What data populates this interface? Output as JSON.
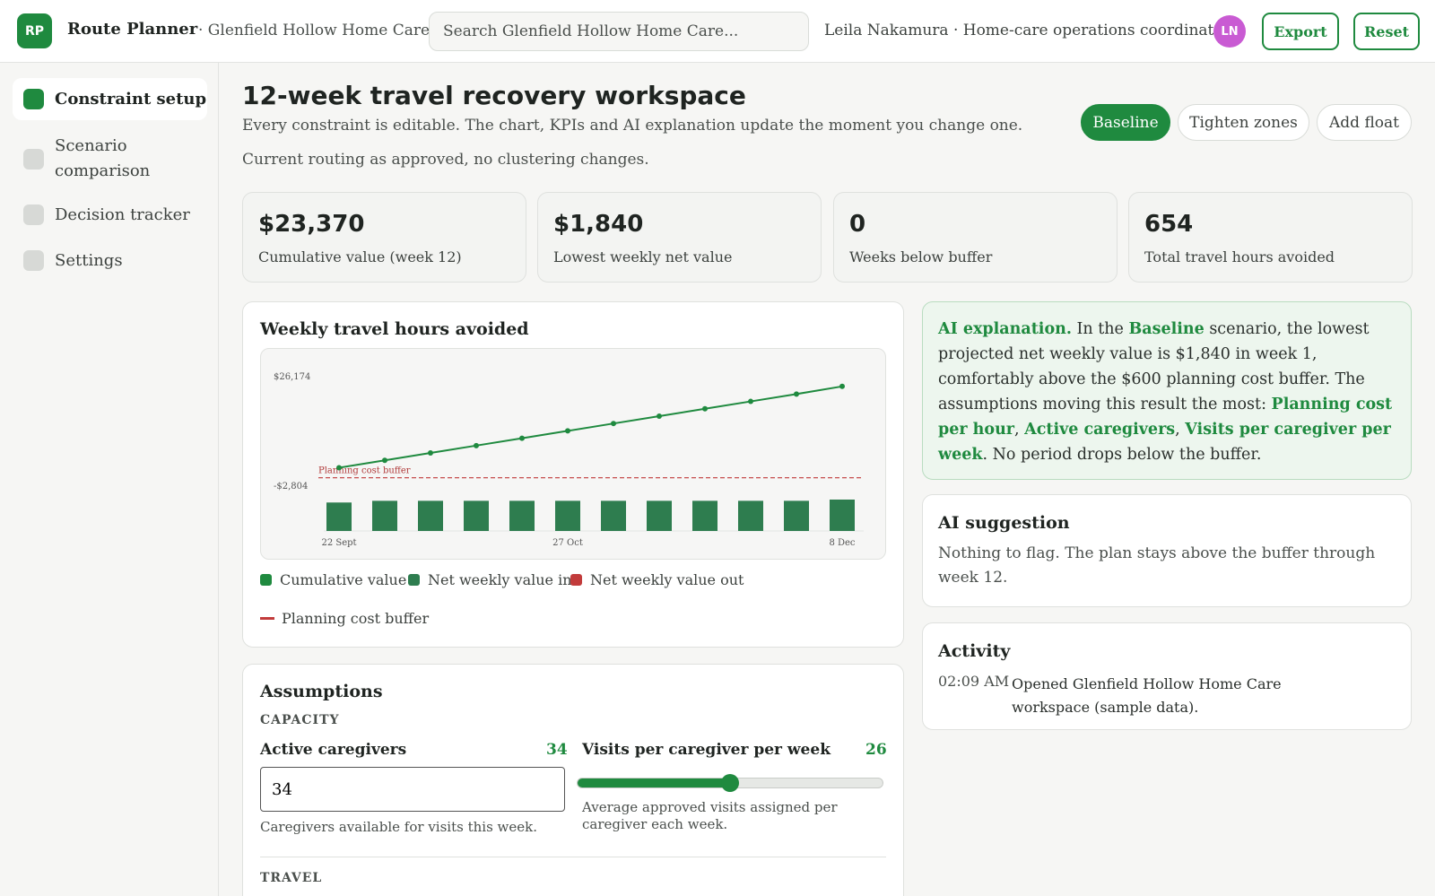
{
  "app": {
    "logo": "RP",
    "name": "Route Planner",
    "org": "· Glenfield Hollow Home Care"
  },
  "search": {
    "placeholder": "Search Glenfield Hollow Home Care..."
  },
  "user": {
    "label": "Leila Nakamura · Home-care operations coordinator",
    "initials": "LN"
  },
  "header_actions": {
    "export": "Export",
    "reset": "Reset"
  },
  "sidebar": {
    "items": [
      {
        "label": "Constraint setup",
        "active": true
      },
      {
        "label": "Scenario comparison",
        "active": false
      },
      {
        "label": "Decision tracker",
        "active": false
      },
      {
        "label": "Settings",
        "active": false
      }
    ]
  },
  "page": {
    "title": "12-week travel recovery workspace",
    "subtitle": "Every constraint is editable. The chart, KPIs and AI explanation update the moment you change one.",
    "scenario_note": "Current routing as approved, no clustering changes."
  },
  "scenarios": [
    {
      "label": "Baseline",
      "active": true
    },
    {
      "label": "Tighten zones",
      "active": false
    },
    {
      "label": "Add float",
      "active": false
    }
  ],
  "kpis": [
    {
      "value": "$23,370",
      "label": "Cumulative value (week 12)"
    },
    {
      "value": "$1,840",
      "label": "Lowest weekly net value"
    },
    {
      "value": "0",
      "label": "Weeks below buffer"
    },
    {
      "value": "654",
      "label": "Total travel hours avoided"
    }
  ],
  "chart_card": {
    "title": "Weekly travel hours avoided",
    "legend": [
      {
        "label": "Cumulative value",
        "color": "#1f8a3f"
      },
      {
        "label": "Net weekly value in",
        "color": "#2e7d4f"
      },
      {
        "label": "Net weekly value out",
        "color": "#c23b3b"
      },
      {
        "label": "Planning cost buffer",
        "color": "#c23b3b"
      }
    ]
  },
  "chart_data": {
    "type": "bar",
    "title": "Weekly travel hours avoided",
    "y_ticks": [
      "$26,174",
      "-$2,804"
    ],
    "ylim": [
      -2804,
      26174
    ],
    "x_tick_labels": [
      "22 Sept",
      "27 Oct",
      "8 Dec"
    ],
    "weeks": [
      1,
      2,
      3,
      4,
      5,
      6,
      7,
      8,
      9,
      10,
      11,
      12
    ],
    "buffer": {
      "label": "Planning cost buffer",
      "value": 600
    },
    "series": [
      {
        "name": "Cumulative value",
        "type": "line",
        "values": [
          1840,
          3790,
          5740,
          7690,
          9640,
          11590,
          13540,
          15490,
          17440,
          19390,
          21340,
          23370
        ]
      },
      {
        "name": "Net weekly value in",
        "type": "bar",
        "values": [
          1840,
          1950,
          1950,
          1950,
          1950,
          1950,
          1950,
          1950,
          1950,
          1950,
          1950,
          2030
        ]
      },
      {
        "name": "Net weekly value out",
        "type": "bar",
        "values": []
      }
    ]
  },
  "ai_explanation": {
    "lead": "AI explanation.",
    "t1": " In the ",
    "scenario": "Baseline",
    "t2": " scenario, the lowest projected net weekly value is $1,840 in week 1, comfortably above the $600 planning cost buffer. The assumptions moving this result the most: ",
    "a1": "Planning cost per hour",
    "sep1": ", ",
    "a2": "Active caregivers",
    "sep2": ", ",
    "a3": "Visits per caregiver per week",
    "t3": ". No period drops below the buffer."
  },
  "ai_suggestion": {
    "title": "AI suggestion",
    "text": "Nothing to flag. The plan stays above the buffer through week 12."
  },
  "activity": {
    "title": "Activity",
    "entries": [
      {
        "time": "02:09 AM",
        "text": "Opened Glenfield Hollow Home Care workspace (sample data)."
      }
    ]
  },
  "assumptions": {
    "title": "Assumptions",
    "capacity_label": "CAPACITY",
    "active_caregivers": {
      "label": "Active caregivers",
      "value": "34",
      "help": "Caregivers available for visits this week."
    },
    "visits_per_caregiver": {
      "label": "Visits per caregiver per week",
      "value": "26",
      "fraction": 0.5,
      "help": "Average approved visits assigned per caregiver each week."
    },
    "travel_label": "TRAVEL"
  }
}
